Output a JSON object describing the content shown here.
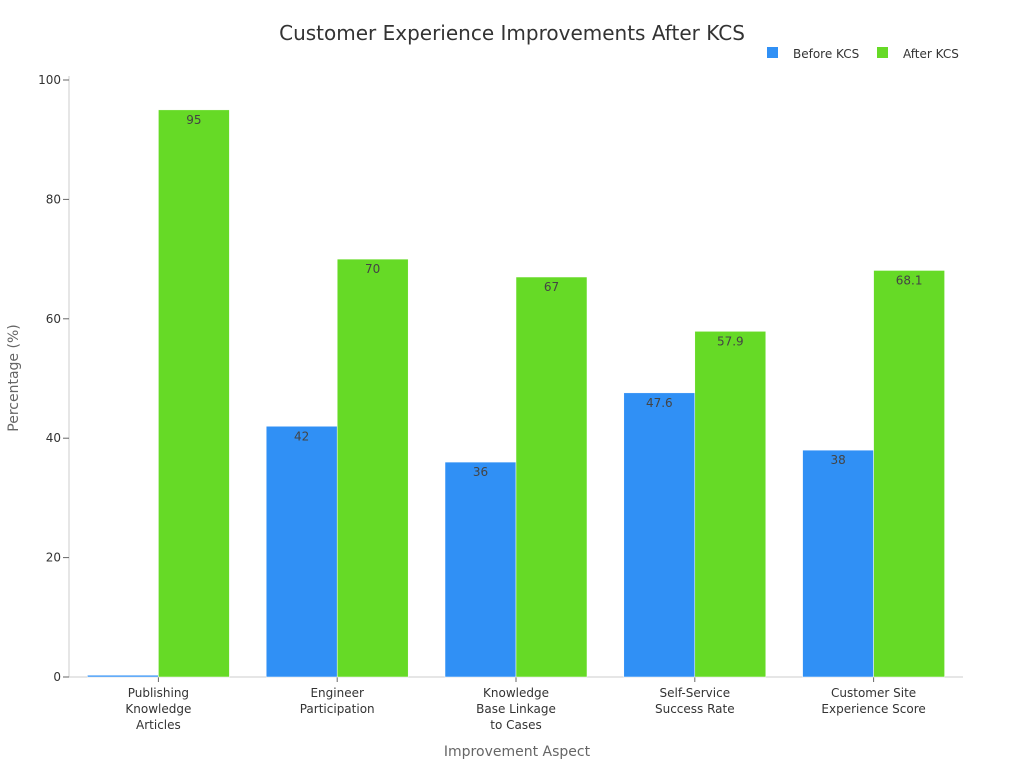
{
  "chart_data": {
    "type": "bar",
    "title": "Customer Experience Improvements After KCS",
    "xlabel": "Improvement Aspect",
    "ylabel": "Percentage (%)",
    "ylim": [
      0,
      100
    ],
    "yticks": [
      0,
      20,
      40,
      60,
      80,
      100
    ],
    "categories": [
      [
        "Publishing",
        "Knowledge",
        "Articles"
      ],
      [
        "Engineer",
        "Participation"
      ],
      [
        "Knowledge",
        "Base Linkage",
        "to Cases"
      ],
      [
        "Self-Service",
        "Success Rate"
      ],
      [
        "Customer Site",
        "Experience Score"
      ]
    ],
    "series": [
      {
        "name": "Before KCS",
        "color": "#3090f5",
        "values": [
          0.3,
          42,
          36,
          47.6,
          38
        ],
        "labels": [
          "",
          "42",
          "36",
          "47.6",
          "38"
        ]
      },
      {
        "name": "After KCS",
        "color": "#66da26",
        "values": [
          95,
          70,
          67,
          57.9,
          68.1
        ],
        "labels": [
          "95",
          "70",
          "67",
          "57.9",
          "68.1"
        ]
      }
    ],
    "grid": false,
    "legend_position": "top-right"
  }
}
